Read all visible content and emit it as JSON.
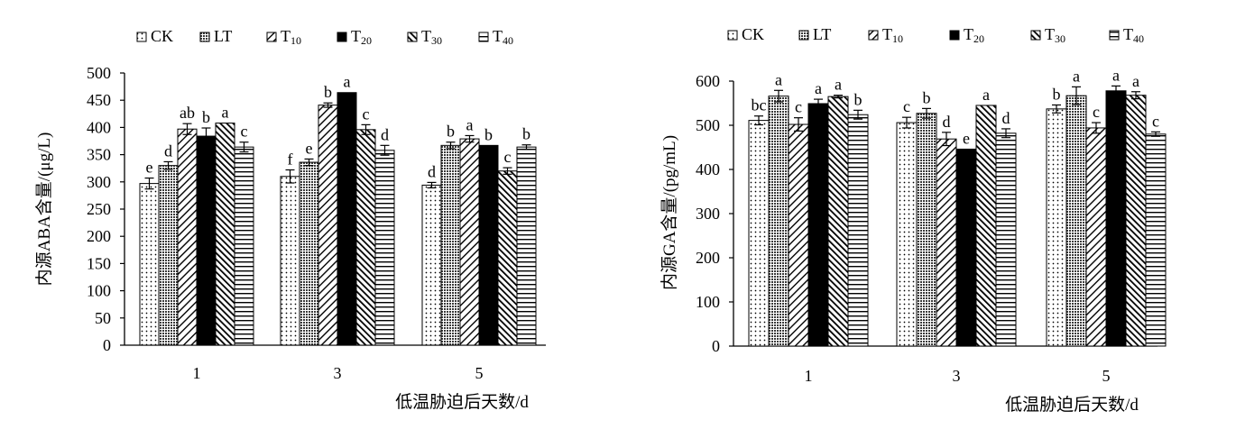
{
  "chart_data": [
    {
      "type": "bar",
      "ylabel": "内源ABA含量/(μg/L)",
      "xlabel": "低温胁迫后天数/d",
      "categories": [
        "1",
        "3",
        "5"
      ],
      "ylim": [
        0,
        500
      ],
      "yticks": [
        "0",
        "50",
        "100",
        "150",
        "200",
        "250",
        "300",
        "350",
        "400",
        "450",
        "500"
      ],
      "grid": false,
      "legend_position": "top",
      "series": [
        {
          "name": "CK",
          "label_main": "CK",
          "label_sub": "",
          "pattern": "dots",
          "values": [
            297,
            310,
            294
          ],
          "errors": [
            10,
            12,
            5
          ],
          "letters": [
            "e",
            "f",
            "d"
          ]
        },
        {
          "name": "LT",
          "label_main": "LT",
          "label_sub": "",
          "pattern": "grid",
          "values": [
            330,
            336,
            367
          ],
          "errors": [
            7,
            6,
            6
          ],
          "letters": [
            "d",
            "e",
            "b"
          ]
        },
        {
          "name": "T10",
          "label_main": "T",
          "label_sub": "10",
          "pattern": "backslash",
          "values": [
            397,
            441,
            379
          ],
          "errors": [
            10,
            4,
            6
          ],
          "letters": [
            "ab",
            "b",
            "a"
          ]
        },
        {
          "name": "T20",
          "label_main": "T",
          "label_sub": "20",
          "pattern": "solid",
          "values": [
            384,
            464,
            367
          ],
          "errors": [
            15,
            0,
            0
          ],
          "letters": [
            "b",
            "a",
            "b"
          ]
        },
        {
          "name": "T30",
          "label_main": "T",
          "label_sub": "30",
          "pattern": "slash",
          "values": [
            408,
            396,
            320
          ],
          "errors": [
            0,
            9,
            6
          ],
          "letters": [
            "a",
            "c",
            "c"
          ]
        },
        {
          "name": "T40",
          "label_main": "T",
          "label_sub": "40",
          "pattern": "hlines",
          "values": [
            364,
            358,
            364
          ],
          "errors": [
            9,
            9,
            4
          ],
          "letters": [
            "c",
            "d",
            "b"
          ]
        }
      ]
    },
    {
      "type": "bar",
      "ylabel": "内源GA含量/(pg/mL)",
      "xlabel": "低温胁迫后天数/d",
      "categories": [
        "1",
        "3",
        "5"
      ],
      "ylim": [
        0,
        600
      ],
      "yticks": [
        "0",
        "100",
        "200",
        "300",
        "400",
        "500",
        "600"
      ],
      "grid": false,
      "legend_position": "top",
      "series": [
        {
          "name": "CK",
          "label_main": "CK",
          "label_sub": "",
          "pattern": "dots",
          "values": [
            511,
            506,
            537
          ],
          "errors": [
            10,
            12,
            9
          ],
          "letters": [
            "bc",
            "c",
            "b"
          ]
        },
        {
          "name": "LT",
          "label_main": "LT",
          "label_sub": "",
          "pattern": "grid",
          "values": [
            566,
            527,
            567
          ],
          "errors": [
            13,
            11,
            20
          ],
          "letters": [
            "a",
            "b",
            "a"
          ]
        },
        {
          "name": "T10",
          "label_main": "T",
          "label_sub": "10",
          "pattern": "backslash",
          "values": [
            502,
            469,
            494
          ],
          "errors": [
            15,
            15,
            12
          ],
          "letters": [
            "c",
            "d",
            "c"
          ]
        },
        {
          "name": "T20",
          "label_main": "T",
          "label_sub": "20",
          "pattern": "solid",
          "values": [
            549,
            446,
            578
          ],
          "errors": [
            10,
            0,
            11
          ],
          "letters": [
            "a",
            "e",
            "a"
          ]
        },
        {
          "name": "T30",
          "label_main": "T",
          "label_sub": "30",
          "pattern": "slash",
          "values": [
            565,
            545,
            568
          ],
          "errors": [
            3,
            0,
            8
          ],
          "letters": [
            "a",
            "a",
            "a"
          ]
        },
        {
          "name": "T40",
          "label_main": "T",
          "label_sub": "40",
          "pattern": "hlines",
          "values": [
            524,
            482,
            480
          ],
          "errors": [
            10,
            10,
            5
          ],
          "letters": [
            "b",
            "d",
            "c"
          ]
        }
      ]
    }
  ]
}
